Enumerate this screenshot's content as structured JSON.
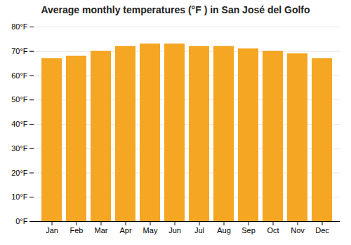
{
  "chart_data": {
    "type": "bar",
    "title": "Average monthly temperatures (°F ) in San José del Golfo",
    "categories": [
      "Jan",
      "Feb",
      "Mar",
      "Apr",
      "May",
      "Jun",
      "Jul",
      "Aug",
      "Sep",
      "Oct",
      "Nov",
      "Dec"
    ],
    "values": [
      67,
      68,
      70,
      72,
      73,
      73,
      72,
      72,
      71,
      70,
      69,
      67
    ],
    "color": "#F5A623",
    "ylim": [
      0,
      80
    ],
    "yticks": [
      {
        "value": 0,
        "label": "0°F"
      },
      {
        "value": 10,
        "label": "10°F"
      },
      {
        "value": 20,
        "label": "20°F"
      },
      {
        "value": 30,
        "label": "30°F"
      },
      {
        "value": 40,
        "label": "40°F"
      },
      {
        "value": 50,
        "label": "50°F"
      },
      {
        "value": 60,
        "label": "60°F"
      },
      {
        "value": 70,
        "label": "70°F"
      },
      {
        "value": 80,
        "label": "80°F"
      }
    ],
    "grid": true
  }
}
